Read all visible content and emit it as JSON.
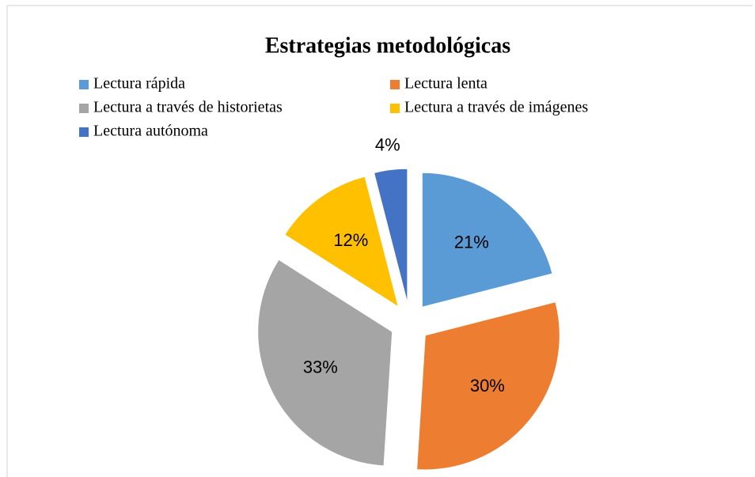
{
  "chart_data": {
    "type": "pie",
    "title": "Estrategias metodológicas",
    "categories": [
      "Lectura rápida",
      "Lectura lenta",
      "Lectura a través de historietas",
      "Lectura a través de imágenes",
      "Lectura autónoma"
    ],
    "values": [
      21,
      30,
      33,
      12,
      4
    ],
    "value_labels": [
      "21%",
      "30%",
      "33%",
      "12%",
      "4%"
    ],
    "colors": [
      "#5b9bd5",
      "#ed7d31",
      "#a5a5a5",
      "#ffc000",
      "#4472c4"
    ],
    "legend": "top"
  }
}
